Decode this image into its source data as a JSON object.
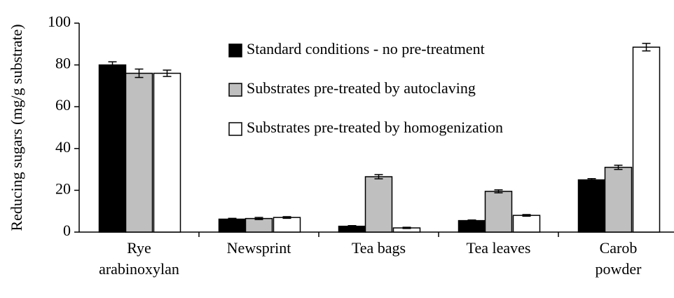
{
  "chart_data": {
    "type": "bar",
    "y_label": "Reducing sugars (mg/g substrate)",
    "categories": [
      "Rye\narabinoxylan",
      "Newsprint",
      "Tea bags",
      "Tea leaves",
      "Carob\npowder"
    ],
    "series": [
      {
        "name": "Standard conditions - no pre-treatment",
        "color": "#000000",
        "values": [
          80,
          6.2,
          2.8,
          5.5,
          25
        ],
        "errors": [
          1.5,
          0.4,
          0.3,
          0.3,
          0.6
        ]
      },
      {
        "name": "Substrates pre-treated by autoclaving",
        "color": "#bfbfbf",
        "values": [
          76,
          6.5,
          26.5,
          19.5,
          31
        ],
        "errors": [
          2,
          0.5,
          1,
          0.7,
          1
        ]
      },
      {
        "name": "Substrates pre-treated by homogenization",
        "color": "#ffffff",
        "values": [
          76,
          7,
          2,
          8,
          88.5
        ],
        "errors": [
          1.5,
          0.4,
          0.3,
          0.4,
          1.8
        ]
      }
    ],
    "ylim": [
      0,
      100
    ],
    "yticks": [
      0,
      20,
      40,
      60,
      80,
      100
    ],
    "grid": false
  }
}
